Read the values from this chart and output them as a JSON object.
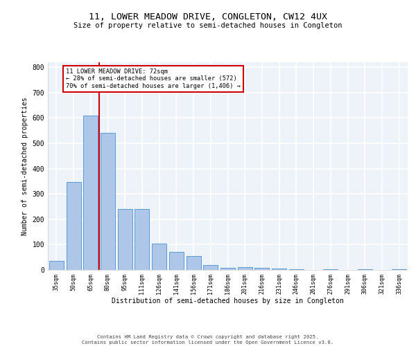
{
  "title_line1": "11, LOWER MEADOW DRIVE, CONGLETON, CW12 4UX",
  "title_line2": "Size of property relative to semi-detached houses in Congleton",
  "xlabel": "Distribution of semi-detached houses by size in Congleton",
  "ylabel": "Number of semi-detached properties",
  "categories": [
    "35sqm",
    "50sqm",
    "65sqm",
    "80sqm",
    "95sqm",
    "111sqm",
    "126sqm",
    "141sqm",
    "156sqm",
    "171sqm",
    "186sqm",
    "201sqm",
    "216sqm",
    "231sqm",
    "246sqm",
    "261sqm",
    "276sqm",
    "291sqm",
    "306sqm",
    "321sqm",
    "336sqm"
  ],
  "values": [
    35,
    348,
    610,
    540,
    240,
    240,
    103,
    70,
    55,
    20,
    7,
    12,
    7,
    5,
    3,
    0,
    3,
    0,
    2,
    0,
    4
  ],
  "bar_color": "#aec6e8",
  "bar_edge_color": "#5b9bd5",
  "property_line_x": 2.5,
  "property_size": "72sqm",
  "pct_smaller": 28,
  "count_smaller": 572,
  "pct_larger": 70,
  "count_larger": 1406,
  "annotation_box_color": "#ffffff",
  "annotation_box_edge": "#cc0000",
  "vline_color": "#cc0000",
  "ylim": [
    0,
    820
  ],
  "yticks": [
    0,
    100,
    200,
    300,
    400,
    500,
    600,
    700,
    800
  ],
  "background_color": "#eef2f9",
  "grid_color": "#ffffff",
  "footer_line1": "Contains HM Land Registry data © Crown copyright and database right 2025.",
  "footer_line2": "Contains public sector information licensed under the Open Government Licence v3.0."
}
